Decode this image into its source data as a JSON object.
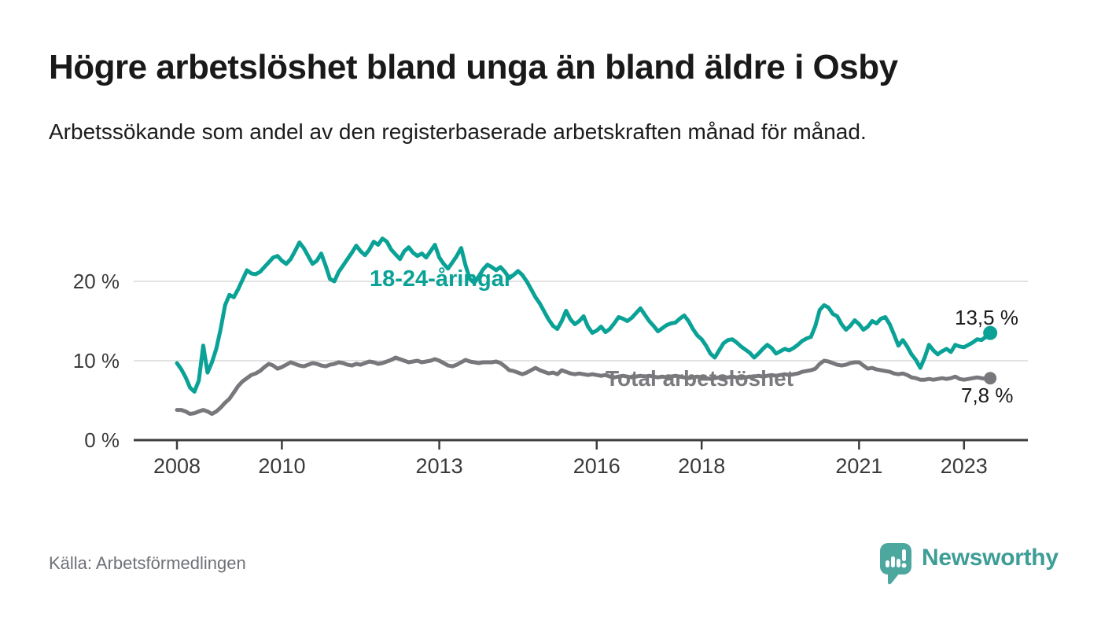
{
  "header": {
    "title": "Högre arbetslöshet bland unga än bland äldre i Osby",
    "subtitle": "Arbetssökande som andel av den registerbaserade arbetskraften månad för månad."
  },
  "chart_data": {
    "type": "line",
    "x_unit": "month",
    "x_start": "2008-01",
    "x_end": "2023-07",
    "x_ticks": [
      "2008",
      "2010",
      "2013",
      "2016",
      "2018",
      "2021",
      "2023"
    ],
    "x_tick_months": [
      0,
      24,
      60,
      96,
      120,
      156,
      180
    ],
    "y_ticks": [
      "0 %",
      "10 %",
      "20 %"
    ],
    "y_grid_values": [
      10,
      20
    ],
    "ylim": [
      0,
      27
    ],
    "grid": "horizontal",
    "legend_position": "inline-labels",
    "series": [
      {
        "name": "18-24-åringar",
        "color": "#0aa296",
        "end_label": "13,5 %",
        "end_value": 13.5,
        "values": [
          9.7,
          8.9,
          7.9,
          6.6,
          6.1,
          7.5,
          11.9,
          8.5,
          9.8,
          11.5,
          14.0,
          17.0,
          18.3,
          18.0,
          19.0,
          20.2,
          21.4,
          21.0,
          20.9,
          21.2,
          21.8,
          22.4,
          23.0,
          23.2,
          22.6,
          22.2,
          22.8,
          23.8,
          24.9,
          24.2,
          23.2,
          22.2,
          22.6,
          23.5,
          22.0,
          20.3,
          20.0,
          21.2,
          22.0,
          22.8,
          23.6,
          24.5,
          23.8,
          23.3,
          24.0,
          25.0,
          24.6,
          25.4,
          25.0,
          24.0,
          23.4,
          22.8,
          23.8,
          24.3,
          23.6,
          23.2,
          23.5,
          23.0,
          23.8,
          24.6,
          23.0,
          22.2,
          21.6,
          22.4,
          23.2,
          24.2,
          22.0,
          20.3,
          19.8,
          20.6,
          21.5,
          22.1,
          21.8,
          21.4,
          21.8,
          21.2,
          20.4,
          20.8,
          21.3,
          20.8,
          20.0,
          19.0,
          18.0,
          17.2,
          16.2,
          15.2,
          14.4,
          14.0,
          15.0,
          16.3,
          15.2,
          14.6,
          15.0,
          15.6,
          14.3,
          13.5,
          13.8,
          14.3,
          13.6,
          14.0,
          14.7,
          15.5,
          15.3,
          15.0,
          15.4,
          16.0,
          16.6,
          15.8,
          15.0,
          14.4,
          13.7,
          14.1,
          14.5,
          14.7,
          14.8,
          15.3,
          15.7,
          15.0,
          14.0,
          13.2,
          12.7,
          11.9,
          10.9,
          10.4,
          11.3,
          12.2,
          12.6,
          12.7,
          12.3,
          11.8,
          11.4,
          11.0,
          10.4,
          10.9,
          11.5,
          12.0,
          11.6,
          10.9,
          11.2,
          11.5,
          11.3,
          11.6,
          12.0,
          12.5,
          12.8,
          13.0,
          14.4,
          16.4,
          17.0,
          16.7,
          15.9,
          15.6,
          14.6,
          13.9,
          14.4,
          15.1,
          14.6,
          13.9,
          14.3,
          15.0,
          14.7,
          15.3,
          15.5,
          14.6,
          13.3,
          11.9,
          12.6,
          11.8,
          10.8,
          10.1,
          9.1,
          10.4,
          12.0,
          11.3,
          10.8,
          11.2,
          11.5,
          11.1,
          12.0,
          11.8,
          11.7,
          12.0,
          12.3,
          12.7,
          12.6,
          13.0,
          13.5
        ]
      },
      {
        "name": "Total arbetslöshet",
        "color": "#78787c",
        "end_label": "7,8 %",
        "end_value": 7.8,
        "values": [
          3.8,
          3.8,
          3.6,
          3.3,
          3.4,
          3.6,
          3.8,
          3.6,
          3.3,
          3.6,
          4.1,
          4.7,
          5.2,
          6.0,
          6.8,
          7.4,
          7.8,
          8.2,
          8.4,
          8.7,
          9.2,
          9.6,
          9.4,
          9.0,
          9.2,
          9.5,
          9.8,
          9.6,
          9.4,
          9.3,
          9.5,
          9.7,
          9.6,
          9.4,
          9.3,
          9.5,
          9.6,
          9.8,
          9.7,
          9.5,
          9.4,
          9.6,
          9.5,
          9.7,
          9.9,
          9.8,
          9.6,
          9.7,
          9.9,
          10.1,
          10.4,
          10.2,
          10.0,
          9.8,
          9.9,
          10.0,
          9.8,
          9.9,
          10.0,
          10.2,
          10.0,
          9.7,
          9.4,
          9.3,
          9.5,
          9.8,
          10.1,
          9.9,
          9.8,
          9.7,
          9.8,
          9.8,
          9.8,
          9.9,
          9.7,
          9.3,
          8.8,
          8.7,
          8.5,
          8.3,
          8.5,
          8.8,
          9.1,
          8.8,
          8.6,
          8.4,
          8.5,
          8.3,
          8.8,
          8.6,
          8.4,
          8.3,
          8.4,
          8.3,
          8.2,
          8.3,
          8.2,
          8.1,
          8.2,
          8.0,
          7.9,
          8.0,
          8.1,
          8.0,
          7.9,
          8.0,
          8.1,
          8.0,
          8.1,
          8.0,
          7.9,
          8.0,
          7.9,
          8.0,
          8.1,
          8.0,
          7.9,
          7.8,
          7.9,
          8.0,
          7.9,
          7.8,
          7.7,
          7.8,
          7.9,
          7.8,
          7.9,
          8.0,
          7.9,
          7.8,
          7.9,
          8.0,
          8.0,
          8.1,
          8.0,
          8.1,
          8.2,
          8.1,
          8.2,
          8.3,
          8.2,
          8.3,
          8.4,
          8.6,
          8.7,
          8.8,
          9.0,
          9.6,
          10.0,
          9.9,
          9.7,
          9.5,
          9.4,
          9.5,
          9.7,
          9.8,
          9.8,
          9.4,
          9.0,
          9.1,
          8.9,
          8.8,
          8.7,
          8.6,
          8.4,
          8.3,
          8.4,
          8.2,
          7.9,
          7.8,
          7.6,
          7.6,
          7.7,
          7.6,
          7.7,
          7.8,
          7.7,
          7.8,
          8.0,
          7.7,
          7.6,
          7.7,
          7.8,
          7.9,
          7.8,
          7.7,
          7.8
        ]
      }
    ]
  },
  "footer": {
    "source": "Källa: Arbetsförmedlingen",
    "brand": "Newsworthy"
  },
  "colors": {
    "accent_teal": "#0aa296",
    "line_gray": "#78787c",
    "gridline": "#e2e2e2",
    "axis": "#3d3d3d",
    "title_text": "#191919",
    "axis_text": "#3a3a3a",
    "source_text": "#6e7177",
    "logo_mark": "#4ca79f",
    "logo_text": "#3e9d97"
  }
}
